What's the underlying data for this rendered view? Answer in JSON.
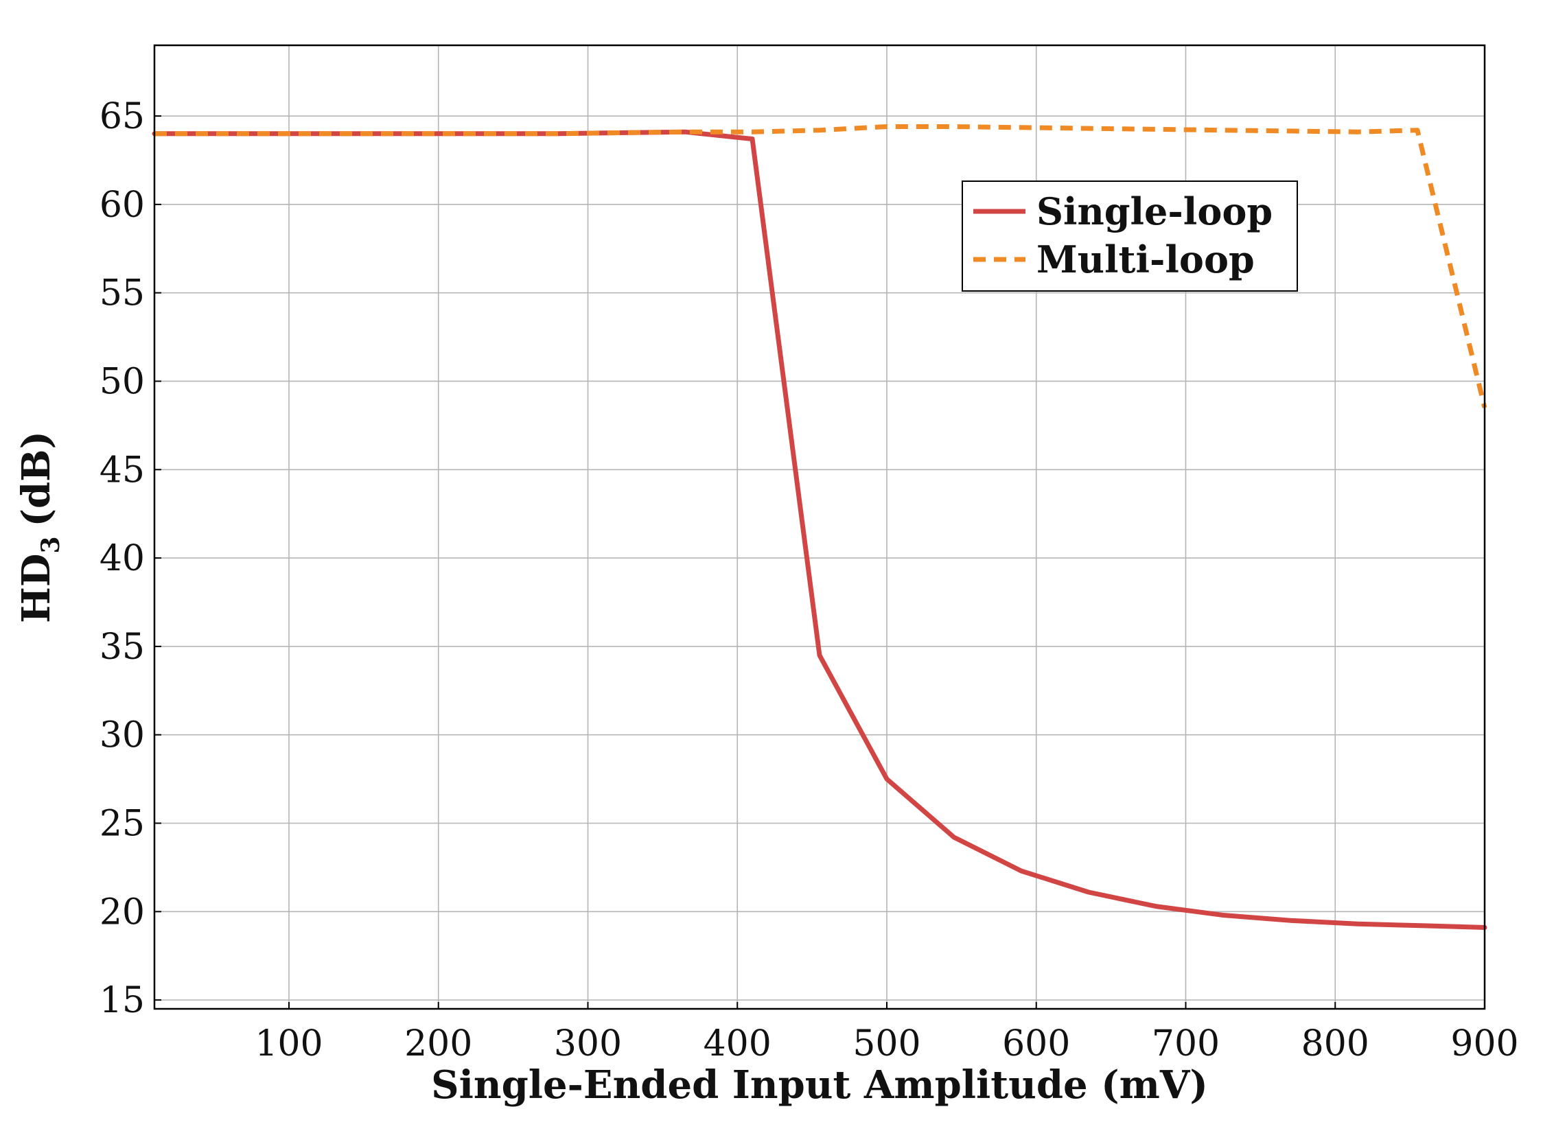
{
  "chart_data": {
    "type": "line",
    "title": "",
    "xlabel": "Single-Ended Input Amplitude (mV)",
    "ylabel": "HD",
    "ylabel_subscript": "3",
    "ylabel_unit": "(dB)",
    "xlim": [
      10,
      900
    ],
    "ylim": [
      14.5,
      69
    ],
    "xticks": [
      100,
      200,
      300,
      400,
      500,
      600,
      700,
      800,
      900
    ],
    "yticks": [
      15,
      20,
      25,
      30,
      35,
      40,
      45,
      50,
      55,
      60,
      65
    ],
    "grid": true,
    "legend_position": "top-right",
    "series": [
      {
        "name": "Single-loop",
        "color": "#d24545",
        "style": "solid",
        "x": [
          10,
          55,
          100,
          145,
          190,
          235,
          280,
          320,
          365,
          410,
          455,
          500,
          545,
          590,
          635,
          680,
          725,
          770,
          815,
          860,
          900
        ],
        "y": [
          64,
          64,
          64,
          64,
          64,
          64,
          64,
          64.05,
          64.1,
          63.7,
          34.5,
          27.5,
          24.2,
          22.3,
          21.1,
          20.3,
          19.8,
          19.5,
          19.3,
          19.2,
          19.1
        ]
      },
      {
        "name": "Multi-loop",
        "color": "#f08a24",
        "style": "dashed",
        "x": [
          10,
          55,
          100,
          145,
          190,
          235,
          280,
          320,
          365,
          410,
          455,
          500,
          545,
          590,
          635,
          680,
          725,
          770,
          815,
          855,
          900
        ],
        "y": [
          64,
          64,
          64,
          64,
          64,
          64,
          64,
          64.05,
          64.1,
          64.1,
          64.2,
          64.4,
          64.4,
          64.35,
          64.3,
          64.25,
          64.2,
          64.15,
          64.1,
          64.2,
          48.5
        ]
      }
    ]
  }
}
